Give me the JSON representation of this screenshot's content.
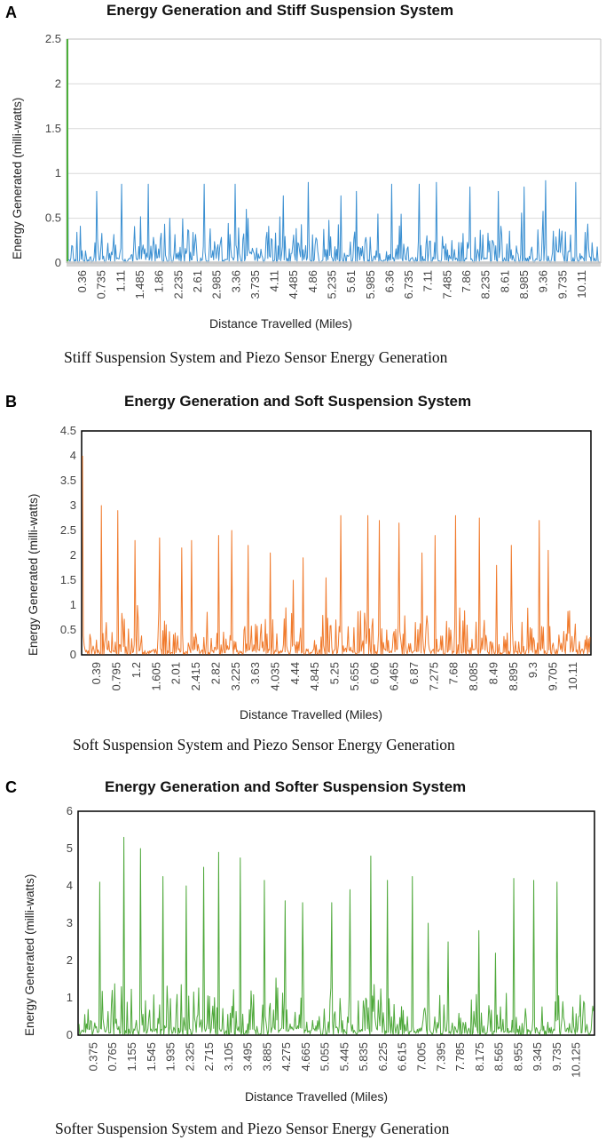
{
  "chart_data": [
    {
      "type": "line",
      "panel_letter": "A",
      "title": "Energy Generation and Stiff Suspension System",
      "xlabel": "Distance Travelled (Miles)",
      "ylabel": "Energy Generated (milli-watts)",
      "caption": "Stiff Suspension System and Piezo Sensor Energy Generation",
      "ylim": [
        0,
        2.5
      ],
      "yticks": [
        "0",
        "0.5",
        "1",
        "1.5",
        "2",
        "2.5"
      ],
      "xlim": [
        0,
        10.5
      ],
      "xticks": [
        "0.36",
        "0.735",
        "1.11",
        "1.485",
        "1.86",
        "2.235",
        "2.61",
        "2.985",
        "3.36",
        "3.735",
        "4.11",
        "4.485",
        "4.86",
        "5.235",
        "5.61",
        "5.985",
        "6.36",
        "6.735",
        "7.11",
        "7.485",
        "7.86",
        "8.235",
        "8.61",
        "8.985",
        "9.36",
        "9.735",
        "10.11"
      ],
      "series_color": "#3a8fd1",
      "start_spike_color": "#4caf3a",
      "start_spike": 2.5,
      "peaks": [
        0.8,
        0.88,
        0.88,
        0.5,
        0.88,
        0.88,
        0.6,
        0.75,
        0.9,
        0.75,
        0.8,
        0.88,
        0.88,
        0.9,
        0.85,
        0.8,
        0.85,
        0.92,
        0.9
      ],
      "typical_max": 0.45,
      "n_points": 620,
      "seed": 11
    },
    {
      "type": "line",
      "panel_letter": "B",
      "title": "Energy Generation and Soft Suspension System",
      "xlabel": "Distance Travelled (Miles)",
      "ylabel": "Energy Generated (milli-watts)",
      "caption": "Soft Suspension System and Piezo Sensor Energy Generation",
      "ylim": [
        0,
        4.5
      ],
      "yticks": [
        "0",
        "0.5",
        "1",
        "1.5",
        "2",
        "2.5",
        "3",
        "3.5",
        "4",
        "4.5"
      ],
      "xlim": [
        0,
        10.5
      ],
      "xticks": [
        "0.39",
        "0.795",
        "1.2",
        "1.605",
        "2.01",
        "2.415",
        "2.82",
        "3.225",
        "3.63",
        "4.035",
        "4.44",
        "4.845",
        "5.25",
        "5.655",
        "6.06",
        "6.465",
        "6.87",
        "7.275",
        "7.68",
        "8.085",
        "8.49",
        "8.895",
        "9.3",
        "9.705",
        "10.11"
      ],
      "series_color": "#f07a2c",
      "start_spike": 4.0,
      "peaks": [
        3.0,
        2.9,
        2.3,
        2.35,
        2.15,
        2.3,
        2.4,
        2.5,
        2.2,
        2.05,
        1.5,
        1.95,
        1.55,
        2.8,
        2.8,
        2.7,
        2.65,
        2.05,
        2.4,
        2.8,
        2.75,
        1.8,
        2.2,
        2.7,
        2.1
      ],
      "typical_max": 0.8,
      "n_points": 620,
      "seed": 23
    },
    {
      "type": "line",
      "panel_letter": "C",
      "title": "Energy Generation and Softer Suspension System",
      "xlabel": "Distance Travelled (Miles)",
      "ylabel": "Energy Generated (milli-watts)",
      "caption": "Softer Suspension System and Piezo Sensor Energy Generation",
      "ylim": [
        0,
        6
      ],
      "yticks": [
        "0",
        "1",
        "2",
        "3",
        "4",
        "5",
        "6"
      ],
      "xlim": [
        0,
        10.5
      ],
      "xticks": [
        "0.375",
        "0.765",
        "1.155",
        "1.545",
        "1.935",
        "2.325",
        "2.715",
        "3.105",
        "3.495",
        "3.885",
        "4.275",
        "4.665",
        "5.055",
        "5.445",
        "5.835",
        "6.225",
        "6.615",
        "7.005",
        "7.395",
        "7.785",
        "8.175",
        "8.565",
        "8.955",
        "9.345",
        "9.735",
        "10.125"
      ],
      "series_color": "#4ea83a",
      "start_spike": 0.3,
      "peaks": [
        4.1,
        5.3,
        5.0,
        4.25,
        4.0,
        4.5,
        4.9,
        4.75,
        4.15,
        3.6,
        3.55,
        3.55,
        3.9,
        4.8,
        4.15,
        4.25,
        3.0,
        2.5,
        2.8,
        2.2,
        4.2,
        4.15,
        4.1
      ],
      "typical_max": 1.3,
      "n_points": 620,
      "seed": 37
    }
  ]
}
